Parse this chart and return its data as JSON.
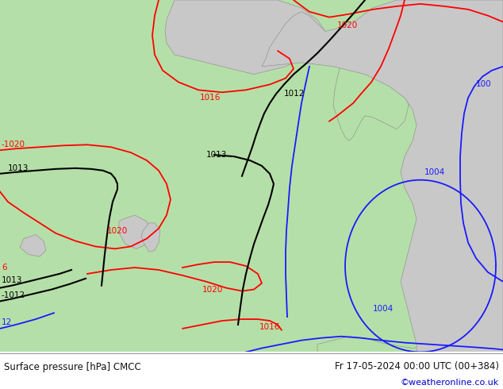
{
  "title_left": "Surface pressure [hPa] CMCC",
  "title_right": "Fr 17-05-2024 00:00 UTC (00+384)",
  "watermark": "©weatheronline.co.uk",
  "bg_land_color": "#b5dfa8",
  "bg_sea_color": "#c8c8c8",
  "land_edge_color": "#888888",
  "contour_red": "#ff0000",
  "contour_black": "#000000",
  "contour_blue": "#1a1aff",
  "figsize": [
    6.34,
    4.9
  ],
  "dpi": 100,
  "bottom_bar_color": "#e0e0e0",
  "text_color": "#111111",
  "watermark_color": "#0000cc",
  "lw_thin": 0.9,
  "lw_main": 1.3
}
